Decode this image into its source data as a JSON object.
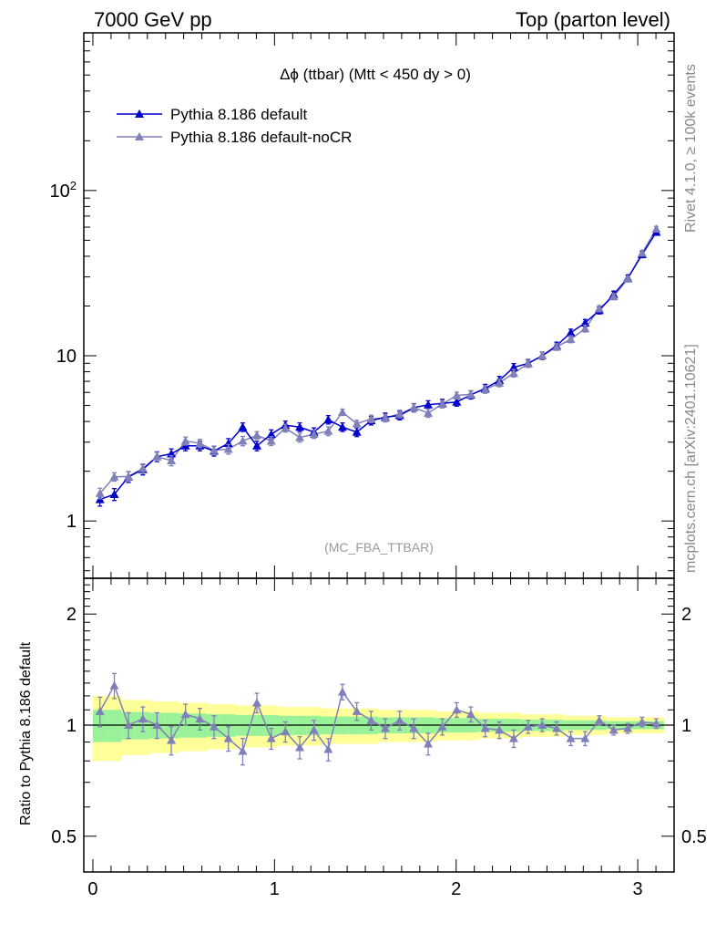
{
  "header": {
    "left": "7000 GeV pp",
    "right": "Top (parton level)"
  },
  "side_labels": {
    "rivet": "Rivet 4.1.0, ≥ 100k events",
    "mcplots": "mcplots.cern.ch [arXiv:2401.10621]"
  },
  "colors": {
    "series1": "#0000cc",
    "series2": "#8080b8",
    "band_inner": "#99f299",
    "band_outer": "#ffff99"
  },
  "chart_data": [
    {
      "type": "line",
      "title": "Δϕ (ttbar) (Mtt < 450 dy > 0)",
      "analysis_label": "(MC_FBA_TTBAR)",
      "yscale": "log",
      "xlim": [
        -0.05,
        3.2
      ],
      "ylim": [
        0.45,
        900
      ],
      "y_ticks": [
        {
          "value": 1,
          "label": "1"
        },
        {
          "value": 10,
          "label": "10"
        },
        {
          "value": 100,
          "label": "10²"
        }
      ],
      "x": [
        0.039,
        0.118,
        0.196,
        0.275,
        0.353,
        0.432,
        0.51,
        0.589,
        0.667,
        0.746,
        0.825,
        0.903,
        0.982,
        1.06,
        1.139,
        1.217,
        1.296,
        1.374,
        1.453,
        1.532,
        1.61,
        1.689,
        1.767,
        1.846,
        1.924,
        2.003,
        2.081,
        2.16,
        2.238,
        2.317,
        2.396,
        2.474,
        2.553,
        2.631,
        2.71,
        2.788,
        2.867,
        2.945,
        3.024,
        3.102
      ],
      "series": [
        {
          "name": "Pythia 8.186 default",
          "values": [
            1.35,
            1.45,
            1.85,
            2.05,
            2.45,
            2.55,
            2.85,
            2.85,
            2.65,
            2.95,
            3.7,
            2.85,
            3.35,
            3.8,
            3.7,
            3.45,
            4.1,
            3.7,
            3.45,
            4.05,
            4.25,
            4.35,
            4.85,
            5.05,
            5.15,
            5.25,
            5.8,
            6.35,
            7.1,
            8.5,
            9.0,
            10.0,
            11.5,
            13.8,
            15.8,
            18.8,
            23.5,
            29.5,
            41.0,
            56.0
          ],
          "errors": [
            0.12,
            0.12,
            0.14,
            0.15,
            0.17,
            0.18,
            0.19,
            0.19,
            0.18,
            0.2,
            0.22,
            0.19,
            0.21,
            0.22,
            0.22,
            0.21,
            0.24,
            0.22,
            0.21,
            0.24,
            0.25,
            0.26,
            0.28,
            0.29,
            0.3,
            0.3,
            0.33,
            0.36,
            0.4,
            0.46,
            0.48,
            0.52,
            0.58,
            0.68,
            0.77,
            0.9,
            1.1,
            1.35,
            1.8,
            2.4
          ]
        },
        {
          "name": "Pythia 8.186 default-noCR",
          "values": [
            1.47,
            1.85,
            1.86,
            2.08,
            2.45,
            2.32,
            3.05,
            2.95,
            2.68,
            2.72,
            3.05,
            3.3,
            3.05,
            3.65,
            3.2,
            3.35,
            3.5,
            4.55,
            3.88,
            4.15,
            4.2,
            4.45,
            4.85,
            4.5,
            5.1,
            5.75,
            5.85,
            6.25,
            6.85,
            7.85,
            8.95,
            10.0,
            11.3,
            12.6,
            14.6,
            19.3,
            22.8,
            29.2,
            41.8,
            58.5
          ]
        }
      ]
    },
    {
      "type": "line",
      "ylabel": "Ratio to Pythia 8.186 default",
      "yscale": "log",
      "xlim": [
        -0.05,
        3.2
      ],
      "ylim": [
        0.4,
        2.5
      ],
      "y_ticks": [
        {
          "value": 0.5,
          "label": "0.5"
        },
        {
          "value": 1,
          "label": "1"
        },
        {
          "value": 2,
          "label": "2"
        }
      ],
      "x_ticks": [
        {
          "value": 0,
          "label": "0"
        },
        {
          "value": 1,
          "label": "1"
        },
        {
          "value": 2,
          "label": "2"
        },
        {
          "value": 3,
          "label": "3"
        }
      ],
      "reference": 1,
      "series": [
        {
          "name": "Pythia 8.186 default-noCR",
          "values": [
            1.09,
            1.28,
            1.0,
            1.04,
            1.0,
            0.91,
            1.07,
            1.04,
            0.99,
            0.92,
            0.85,
            1.15,
            0.92,
            0.96,
            0.87,
            0.97,
            0.86,
            1.23,
            1.09,
            1.03,
            0.98,
            1.03,
            0.98,
            0.89,
            0.99,
            1.1,
            1.07,
            0.98,
            0.97,
            0.92,
            0.99,
            1.0,
            0.98,
            0.92,
            0.92,
            1.03,
            0.97,
            0.98,
            1.02,
            1.01
          ],
          "errors": [
            0.1,
            0.1,
            0.08,
            0.08,
            0.08,
            0.08,
            0.07,
            0.07,
            0.07,
            0.07,
            0.07,
            0.07,
            0.06,
            0.06,
            0.06,
            0.06,
            0.06,
            0.06,
            0.06,
            0.06,
            0.06,
            0.06,
            0.06,
            0.06,
            0.05,
            0.05,
            0.05,
            0.05,
            0.05,
            0.05,
            0.04,
            0.04,
            0.04,
            0.04,
            0.04,
            0.03,
            0.03,
            0.03,
            0.03,
            0.03
          ]
        }
      ],
      "band_inner_halfwidth": [
        0.1,
        0.1,
        0.085,
        0.085,
        0.08,
        0.08,
        0.075,
        0.075,
        0.07,
        0.07,
        0.065,
        0.065,
        0.065,
        0.06,
        0.06,
        0.06,
        0.055,
        0.055,
        0.055,
        0.055,
        0.05,
        0.05,
        0.05,
        0.05,
        0.045,
        0.045,
        0.045,
        0.04,
        0.04,
        0.04,
        0.035,
        0.035,
        0.035,
        0.03,
        0.03,
        0.03,
        0.025,
        0.025,
        0.025,
        0.025
      ],
      "band_outer_halfwidth": [
        0.2,
        0.2,
        0.17,
        0.17,
        0.16,
        0.16,
        0.15,
        0.15,
        0.14,
        0.14,
        0.13,
        0.13,
        0.13,
        0.12,
        0.12,
        0.12,
        0.11,
        0.11,
        0.11,
        0.11,
        0.1,
        0.1,
        0.1,
        0.1,
        0.09,
        0.09,
        0.09,
        0.08,
        0.08,
        0.08,
        0.07,
        0.07,
        0.07,
        0.06,
        0.06,
        0.06,
        0.05,
        0.05,
        0.05,
        0.05
      ]
    }
  ]
}
